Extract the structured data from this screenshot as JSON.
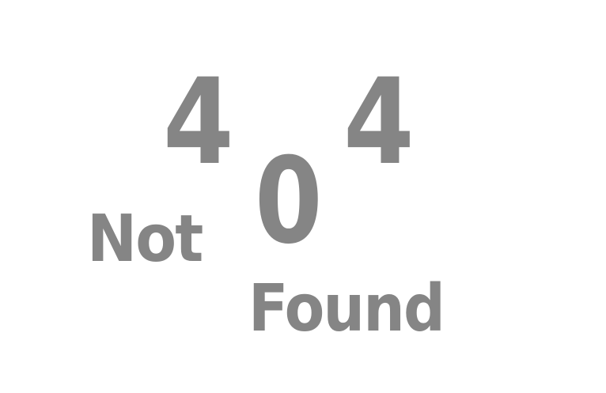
{
  "error_code": {
    "first_digit": "4",
    "middle_digit": "0",
    "last_digit": "4"
  },
  "message": {
    "word_one": "Not",
    "word_two": "Found"
  },
  "colors": {
    "text": "#858585",
    "background": "#ffffff"
  }
}
